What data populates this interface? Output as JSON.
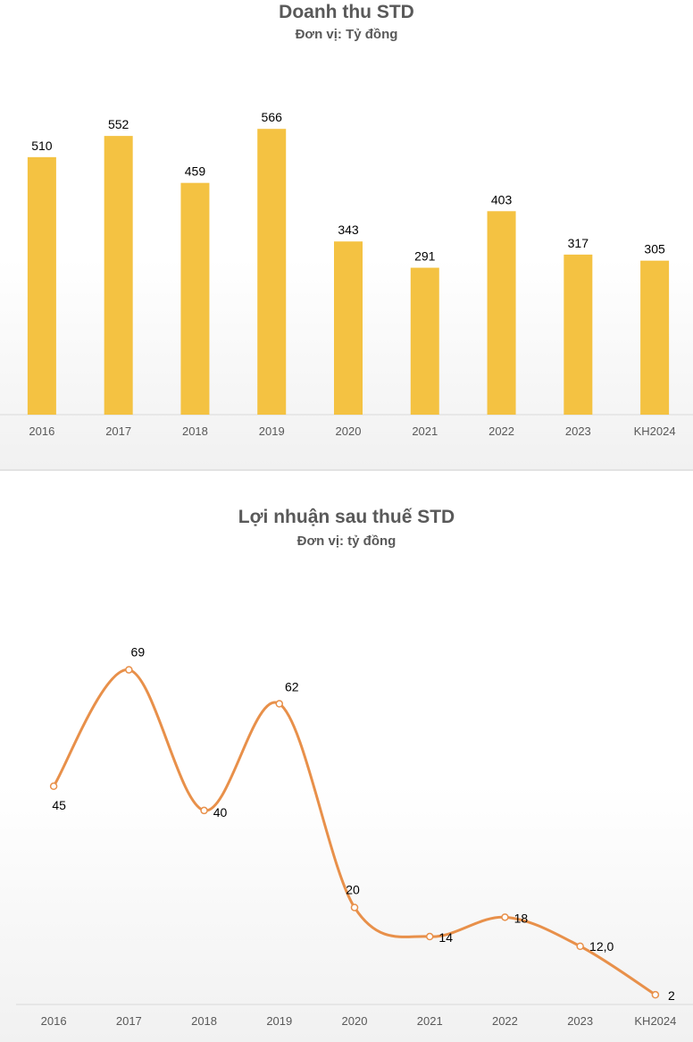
{
  "chart_data": [
    {
      "type": "bar",
      "title": "Doanh thu STD",
      "subtitle": "Đơn vị: Tỷ đồng",
      "categories": [
        "2016",
        "2017",
        "2018",
        "2019",
        "2020",
        "2021",
        "2022",
        "2023",
        "KH2024"
      ],
      "values": [
        510,
        552,
        459,
        566,
        343,
        291,
        403,
        317,
        305
      ],
      "value_labels": [
        "510",
        "552",
        "459",
        "566",
        "343",
        "291",
        "403",
        "317",
        "305"
      ],
      "ylim": [
        0,
        600
      ],
      "grid": false,
      "color": "#f4c242"
    },
    {
      "type": "line",
      "title": "Lợi nhuận sau thuế STD",
      "subtitle": "Đơn vị: tỷ đồng",
      "categories": [
        "2016",
        "2017",
        "2018",
        "2019",
        "2020",
        "2021",
        "2022",
        "2023",
        "KH2024"
      ],
      "values": [
        45,
        69,
        40,
        62,
        20,
        14,
        18,
        12,
        2
      ],
      "value_labels": [
        "45",
        "69",
        "40",
        "62",
        "20",
        "14",
        "18",
        "12,0",
        "2"
      ],
      "ylim": [
        0,
        75
      ],
      "grid": false,
      "smooth": true,
      "color": "#e8904a"
    }
  ]
}
